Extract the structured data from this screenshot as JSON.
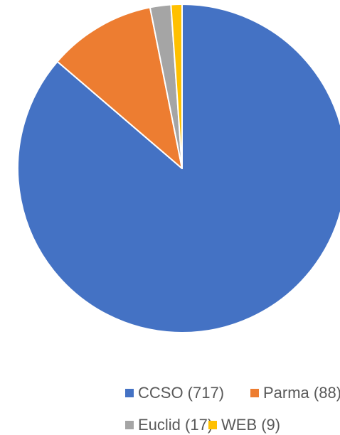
{
  "chart_data": {
    "type": "pie",
    "categories": [
      "CCSO (717)",
      "Parma (88)",
      "Euclid (17)",
      "WEB (9)"
    ],
    "values": [
      717,
      88,
      17,
      9
    ],
    "colors": [
      "#4472c4",
      "#ed7d31",
      "#a5a5a5",
      "#ffc000"
    ],
    "legend": "bottom"
  }
}
